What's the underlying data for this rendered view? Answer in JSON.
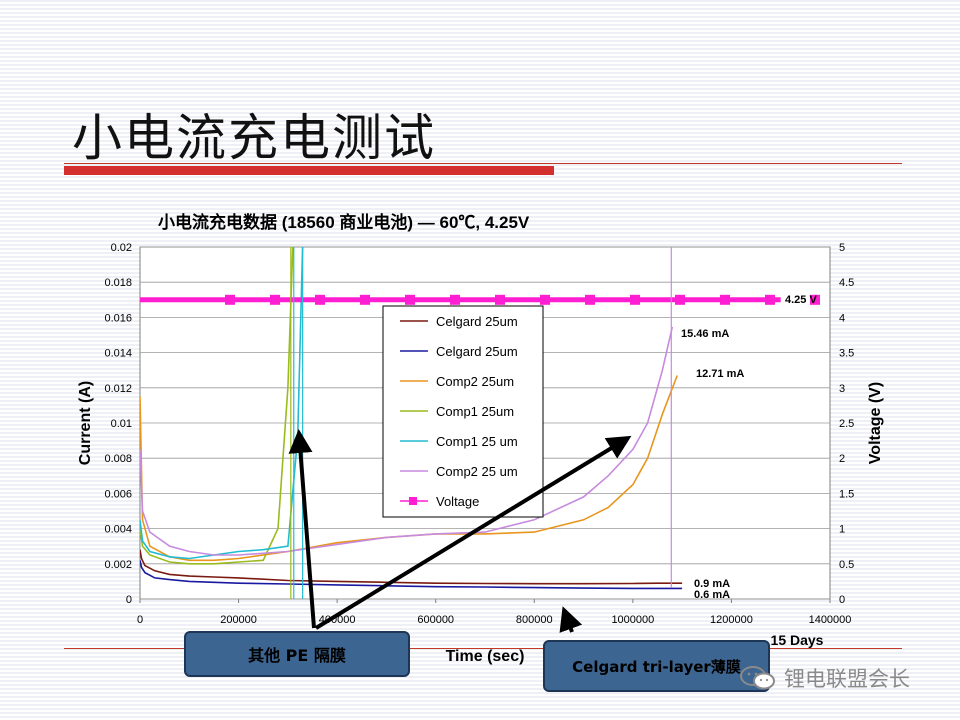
{
  "slide": {
    "title": "小电流充电测试"
  },
  "callouts": {
    "pe": "其他 PE 隔膜",
    "celgard": "Celgard tri-layer薄膜"
  },
  "watermark": {
    "text": "锂电联盟会长",
    "icon": "wechat-icon"
  },
  "chart_data": {
    "type": "line",
    "title": "小电流充电数据 (18560 商业电池) — 60℃, 4.25V",
    "xlabel": "Time (sec)",
    "ylabel": "Current (A)",
    "y2label": "Voltage (V)",
    "xlim": [
      0,
      1400000
    ],
    "ylim": [
      0,
      0.02
    ],
    "y2lim": [
      0,
      5
    ],
    "x_ticks": [
      "0",
      "200000",
      "400000",
      "600000",
      "800000",
      "1000000",
      "1200000",
      "1400000"
    ],
    "y_ticks": [
      "0",
      "0.002",
      "0.004",
      "0.006",
      "0.008",
      "0.01",
      "0.012",
      "0.014",
      "0.016",
      "0.018",
      "0.02"
    ],
    "y2_ticks": [
      "0",
      "0.5",
      "1",
      "1.5",
      "2",
      "2.5",
      "3",
      "3.5",
      "4",
      "4.5",
      "5"
    ],
    "x_extra_label": "15 Days",
    "grid": true,
    "legend": "center",
    "series": [
      {
        "name": "Celgard 25um",
        "axis": "left",
        "color": "#7a1a10",
        "x": [
          0,
          3000,
          10000,
          30000,
          60000,
          100000,
          150000,
          200000,
          300000,
          400000,
          500000,
          600000,
          700000,
          800000,
          900000,
          1000000,
          1050000,
          1100000
        ],
        "y": [
          0.0028,
          0.0023,
          0.0019,
          0.0016,
          0.0014,
          0.0013,
          0.00125,
          0.0012,
          0.00105,
          0.001,
          0.00095,
          0.0009,
          0.00088,
          0.00087,
          0.00087,
          0.00088,
          0.0009,
          0.0009
        ]
      },
      {
        "name": "Celgard 25um",
        "axis": "left",
        "color": "#1a1aa0",
        "x": [
          0,
          3000,
          10000,
          30000,
          60000,
          100000,
          150000,
          200000,
          300000,
          400000,
          500000,
          600000,
          700000,
          800000,
          900000,
          1000000,
          1050000,
          1100000
        ],
        "y": [
          0.0022,
          0.0018,
          0.0015,
          0.0012,
          0.0011,
          0.001,
          0.00095,
          0.0009,
          0.00085,
          0.0008,
          0.00075,
          0.0007,
          0.00068,
          0.00065,
          0.00062,
          0.0006,
          0.0006,
          0.0006
        ]
      },
      {
        "name": "Comp2 25um",
        "axis": "left",
        "color": "#e8961e",
        "x": [
          0,
          5000,
          20000,
          60000,
          100000,
          150000,
          200000,
          300000,
          400000,
          500000,
          600000,
          700000,
          800000,
          900000,
          950000,
          1000000,
          1030000,
          1060000,
          1090000
        ],
        "y": [
          0.0115,
          0.0045,
          0.003,
          0.0024,
          0.0022,
          0.0022,
          0.0023,
          0.0027,
          0.0032,
          0.0035,
          0.0037,
          0.0037,
          0.0038,
          0.0045,
          0.0052,
          0.0065,
          0.008,
          0.0105,
          0.0127
        ]
      },
      {
        "name": "Comp1 25um",
        "axis": "left",
        "color": "#9abb1e",
        "x": [
          0,
          5000,
          20000,
          60000,
          100000,
          150000,
          200000,
          250000,
          280000,
          300000,
          310000
        ],
        "y": [
          0.004,
          0.003,
          0.0025,
          0.0021,
          0.002,
          0.002,
          0.0021,
          0.0022,
          0.004,
          0.012,
          0.02
        ]
      },
      {
        "name": "Comp1 25 um",
        "axis": "left",
        "color": "#22bcd2",
        "x": [
          0,
          5000,
          20000,
          60000,
          100000,
          150000,
          200000,
          250000,
          300000,
          320000,
          330000
        ],
        "y": [
          0.0045,
          0.0033,
          0.0027,
          0.0024,
          0.0023,
          0.0025,
          0.0027,
          0.0028,
          0.003,
          0.0092,
          0.02
        ]
      },
      {
        "name": "Comp2 25 um",
        "axis": "left",
        "color": "#c78ade",
        "x": [
          0,
          5000,
          20000,
          60000,
          100000,
          150000,
          200000,
          300000,
          400000,
          500000,
          600000,
          700000,
          800000,
          900000,
          950000,
          1000000,
          1030000,
          1060000,
          1080000
        ],
        "y": [
          0.0085,
          0.005,
          0.0038,
          0.003,
          0.0027,
          0.0025,
          0.0025,
          0.0027,
          0.0031,
          0.0035,
          0.0037,
          0.0038,
          0.0045,
          0.0058,
          0.007,
          0.0085,
          0.01,
          0.013,
          0.01546
        ]
      },
      {
        "name": "Voltage",
        "axis": "right",
        "color": "#ff1ed2",
        "x": [
          0,
          1300000
        ],
        "y": [
          4.25,
          4.25
        ]
      }
    ],
    "annotations": [
      "4.25 V",
      "15.46 mA",
      "12.71 mA",
      "0.9 mA",
      "0.6 mA"
    ]
  }
}
